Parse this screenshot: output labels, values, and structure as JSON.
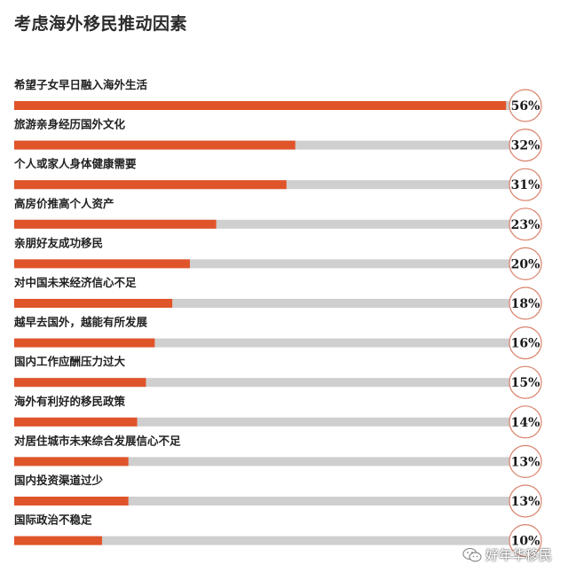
{
  "chart_data": {
    "type": "bar",
    "orientation": "horizontal",
    "title": "考虑海外移民推动因素",
    "categories": [
      "希望子女早日融入海外生活",
      "旅游亲身经历国外文化",
      "个人或家人身体健康需要",
      "高房价推高个人资产",
      "亲朋好友成功移民",
      "对中国未来经济信心不足",
      "越早去国外，越能有所发展",
      "国内工作应酬压力过大",
      "海外有利好的移民政策",
      "对居住城市未来综合发展信心不足",
      "国内投资渠道过少",
      "国际政治不稳定"
    ],
    "values": [
      56,
      32,
      31,
      23,
      20,
      18,
      16,
      15,
      14,
      13,
      13,
      10
    ],
    "value_labels": [
      "56%",
      "32%",
      "31%",
      "23%",
      "20%",
      "18%",
      "16%",
      "15%",
      "14%",
      "13%",
      "13%",
      "10%"
    ],
    "xlim": [
      0,
      58
    ],
    "bar_color": "#e0542a",
    "track_color": "#cfcfcf",
    "circle_color": "#d9826a",
    "grid": false,
    "legend": "none"
  },
  "watermark": {
    "text": "好年华移民",
    "icon": "wechat-icon"
  }
}
